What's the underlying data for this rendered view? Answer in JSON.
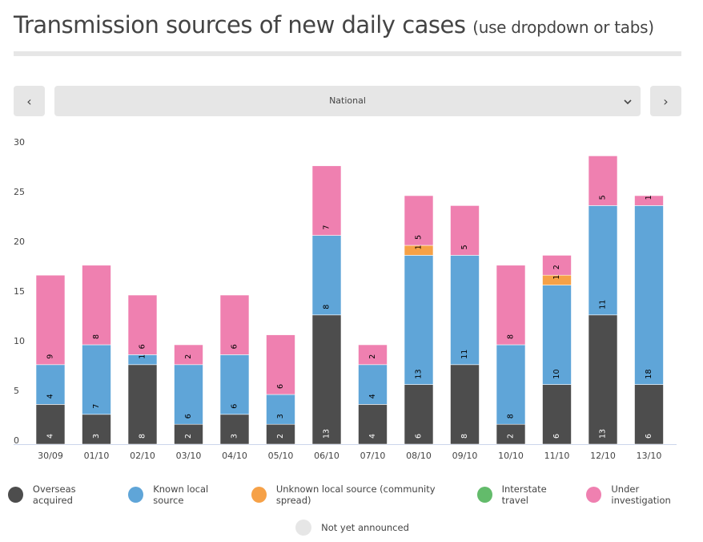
{
  "header": {
    "title": "Transmission sources of new daily cases",
    "subtitle": "(use dropdown or tabs)"
  },
  "controls": {
    "prev_label": "‹",
    "next_label": "›",
    "dropdown_value": "National",
    "dropdown_chevron": "⌄"
  },
  "colors": {
    "overseas": "#4d4d4d",
    "known_local": "#5fa5d8",
    "unknown_local": "#f6a147",
    "interstate": "#63bb6b",
    "under_investigation": "#ef80b0",
    "not_announced": "#e6e6e6"
  },
  "chart_data": {
    "type": "bar",
    "stacked": true,
    "title": "Transmission sources of new daily cases",
    "xlabel": "",
    "ylabel": "",
    "ylim": [
      0,
      30
    ],
    "yticks": [
      0,
      5,
      10,
      15,
      20,
      25,
      30
    ],
    "grid": false,
    "legend_position": "bottom",
    "categories": [
      "30/09",
      "01/10",
      "02/10",
      "03/10",
      "04/10",
      "05/10",
      "06/10",
      "07/10",
      "08/10",
      "09/10",
      "10/10",
      "11/10",
      "12/10",
      "13/10"
    ],
    "series": [
      {
        "key": "overseas",
        "name": "Overseas acquired",
        "values": [
          4,
          3,
          8,
          2,
          3,
          2,
          13,
          4,
          6,
          8,
          2,
          6,
          13,
          6
        ]
      },
      {
        "key": "known_local",
        "name": "Known local source",
        "values": [
          4,
          7,
          1,
          6,
          6,
          3,
          8,
          4,
          13,
          11,
          8,
          10,
          11,
          18
        ]
      },
      {
        "key": "unknown_local",
        "name": "Unknown local source (community spread)",
        "values": [
          0,
          0,
          0,
          0,
          0,
          0,
          0,
          0,
          1,
          0,
          0,
          1,
          0,
          0
        ]
      },
      {
        "key": "interstate",
        "name": "Interstate travel",
        "values": [
          0,
          0,
          0,
          0,
          0,
          0,
          0,
          0,
          0,
          0,
          0,
          0,
          0,
          0
        ]
      },
      {
        "key": "under_investigation",
        "name": "Under investigation",
        "values": [
          9,
          8,
          6,
          2,
          6,
          6,
          7,
          2,
          5,
          5,
          8,
          2,
          5,
          1
        ]
      },
      {
        "key": "not_announced",
        "name": "Not yet announced",
        "values": [
          0,
          0,
          0,
          0,
          0,
          0,
          0,
          0,
          0,
          0,
          0,
          0,
          0,
          0
        ]
      }
    ]
  },
  "legend": [
    {
      "key": "overseas",
      "label": "Overseas acquired"
    },
    {
      "key": "known_local",
      "label": "Known local source"
    },
    {
      "key": "unknown_local",
      "label": "Unknown local source (community spread)"
    },
    {
      "key": "interstate",
      "label": "Interstate travel"
    },
    {
      "key": "under_investigation",
      "label": "Under investigation"
    },
    {
      "key": "not_announced",
      "label": "Not yet announced"
    }
  ]
}
